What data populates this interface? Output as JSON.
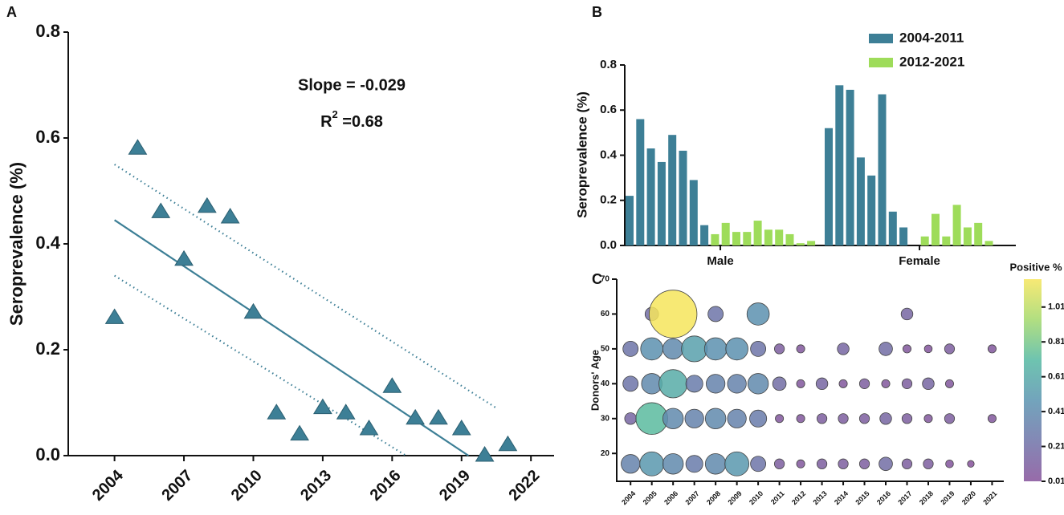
{
  "chart_data": [
    {
      "type": "scatter",
      "panel": "A",
      "ylabel": "Seroprevalence (%)",
      "annotations": [
        "Slope = -0.029",
        {
          "base": "R",
          "sup": "2",
          "rest": " =0.68"
        }
      ],
      "x": [
        2004,
        2005,
        2006,
        2007,
        2008,
        2009,
        2010,
        2011,
        2012,
        2013,
        2014,
        2015,
        2016,
        2017,
        2018,
        2019,
        2020,
        2021
      ],
      "values": [
        0.26,
        0.58,
        0.46,
        0.37,
        0.47,
        0.45,
        0.27,
        0.08,
        0.04,
        0.09,
        0.08,
        0.05,
        0.13,
        0.07,
        0.07,
        0.05,
        0.0,
        0.02
      ],
      "color": "#3d7f96",
      "fit": {
        "x": [
          2004,
          2019.3
        ],
        "y": [
          0.445,
          0
        ]
      },
      "upper_band": {
        "x": [
          2004,
          2020.5
        ],
        "y": [
          0.55,
          0.09
        ]
      },
      "lower_band": {
        "x": [
          2004,
          2016.6
        ],
        "y": [
          0.34,
          0
        ]
      },
      "xlim": [
        2002,
        2023
      ],
      "xticks": [
        2004,
        2007,
        2010,
        2013,
        2016,
        2019,
        2022
      ],
      "ylim": [
        0,
        0.8
      ],
      "yticks": [
        {
          "value": 0,
          "label": "0.0"
        },
        0.2,
        0.4,
        0.6,
        0.8
      ]
    },
    {
      "type": "bar",
      "panel": "B",
      "ylabel": "Seroprevalence (%)",
      "categories": [
        "Male",
        "Female"
      ],
      "series": [
        {
          "name": "2004-2011",
          "color": "#3d7f96",
          "values": [
            [
              0.22,
              0.56,
              0.43,
              0.37,
              0.49,
              0.42,
              0.29,
              0.09
            ],
            [
              0.52,
              0.71,
              0.69,
              0.39,
              0.31,
              0.67,
              0.15,
              0.08
            ]
          ]
        },
        {
          "name": "2012-2021",
          "color": "#9edc5a",
          "values": [
            [
              0.05,
              0.1,
              0.06,
              0.06,
              0.11,
              0.07,
              0.07,
              0.05,
              0.01,
              0.02
            ],
            [
              0,
              0.04,
              0.14,
              0.04,
              0.18,
              0.08,
              0.1,
              0.02,
              0,
              0
            ]
          ]
        }
      ],
      "legend": "upper right",
      "ylim": [
        0,
        0.8
      ],
      "yticks": [
        {
          "value": 0,
          "label": "0.0"
        },
        0.2,
        0.4,
        0.6,
        0.8
      ]
    },
    {
      "type": "bubble",
      "panel": "C",
      "ylabel": "Donors' Age",
      "colorbar_title": "Positive %",
      "x": [
        2005,
        2006,
        2008,
        2010,
        2017,
        2004,
        2005,
        2006,
        2007,
        2008,
        2009,
        2010,
        2011,
        2012,
        2014,
        2016,
        2017,
        2018,
        2019,
        2021,
        2004,
        2005,
        2006,
        2007,
        2008,
        2009,
        2010,
        2011,
        2012,
        2013,
        2014,
        2015,
        2016,
        2017,
        2018,
        2019,
        2004,
        2005,
        2006,
        2007,
        2008,
        2009,
        2010,
        2011,
        2012,
        2013,
        2014,
        2015,
        2016,
        2017,
        2018,
        2019,
        2021,
        2004,
        2005,
        2006,
        2007,
        2008,
        2009,
        2010,
        2011,
        2012,
        2013,
        2014,
        2015,
        2016,
        2017,
        2018,
        2019,
        2020
      ],
      "y": [
        60,
        60,
        60,
        60,
        60,
        50,
        50,
        50,
        50,
        50,
        50,
        50,
        50,
        50,
        50,
        50,
        50,
        50,
        50,
        50,
        40,
        40,
        40,
        40,
        40,
        40,
        40,
        40,
        40,
        40,
        40,
        40,
        40,
        40,
        40,
        40,
        30,
        30,
        30,
        30,
        30,
        30,
        30,
        30,
        30,
        30,
        30,
        30,
        30,
        30,
        30,
        30,
        30,
        17,
        17,
        17,
        17,
        17,
        17,
        17,
        17,
        17,
        17,
        17,
        17,
        17,
        17,
        17,
        17,
        17
      ],
      "values": [
        0.2,
        1.17,
        0.25,
        0.45,
        0.15,
        0.25,
        0.45,
        0.4,
        0.55,
        0.45,
        0.45,
        0.25,
        0.1,
        0.05,
        0.15,
        0.2,
        0.05,
        0.04,
        0.1,
        0.05,
        0.25,
        0.4,
        0.62,
        0.3,
        0.35,
        0.35,
        0.4,
        0.2,
        0.05,
        0.15,
        0.05,
        0.1,
        0.05,
        0.1,
        0.15,
        0.05,
        0.15,
        0.72,
        0.4,
        0.35,
        0.4,
        0.35,
        0.3,
        0.05,
        0.05,
        0.1,
        0.1,
        0.1,
        0.15,
        0.1,
        0.05,
        0.1,
        0.05,
        0.35,
        0.5,
        0.4,
        0.3,
        0.4,
        0.5,
        0.25,
        0.1,
        0.05,
        0.1,
        0.1,
        0.1,
        0.2,
        0.1,
        0.1,
        0.04,
        0.01
      ],
      "xlim": [
        2003.35,
        2021.55
      ],
      "xticks": [
        2004,
        2005,
        2006,
        2007,
        2008,
        2009,
        2010,
        2011,
        2012,
        2013,
        2014,
        2015,
        2016,
        2017,
        2018,
        2019,
        2020,
        2021
      ],
      "ylim": [
        12,
        70
      ],
      "yticks": [
        20,
        30,
        40,
        50,
        60,
        70
      ],
      "clim": [
        0.01,
        1.17
      ],
      "cticks": [
        0.01,
        0.21,
        0.41,
        0.61,
        0.81,
        1.01
      ],
      "colormap": [
        "#85519a",
        "#6e73a8",
        "#5a94b0",
        "#55b9a2",
        "#a4d96b",
        "#f6e55c"
      ]
    }
  ]
}
